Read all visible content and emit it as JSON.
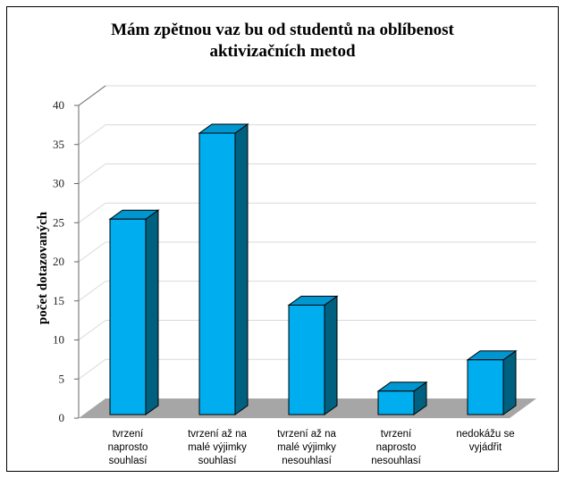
{
  "chart_data": {
    "type": "bar",
    "title": [
      "Mám zpětnou vaz bu od studentů na oblíbenost",
      "aktivizačních metod"
    ],
    "xlabel": "",
    "ylabel": "počet dotazovaných",
    "ylim": [
      0,
      40
    ],
    "yticks": [
      "0",
      "5",
      "10",
      "15",
      "20",
      "25",
      "30",
      "35",
      "40"
    ],
    "categories": [
      [
        "tvrzení",
        "naprosto",
        "souhlasí"
      ],
      [
        "tvrzení až na",
        "malé výjimky",
        "souhlasí"
      ],
      [
        "tvrzení až na",
        "malé výjimky",
        "nesouhlasí"
      ],
      [
        "tvrzení",
        "naprosto",
        "nesouhlasí"
      ],
      [
        "nedokážu se",
        "vyjádřit"
      ]
    ],
    "values": [
      25,
      36,
      14,
      3,
      7
    ],
    "grid": true,
    "legend": "none",
    "colors": {
      "bar_front": "#00aeef",
      "bar_top": "#0096cf",
      "bar_side": "#00607f",
      "floor": "#a6a6a6",
      "grid": "#d9d9d9"
    }
  }
}
